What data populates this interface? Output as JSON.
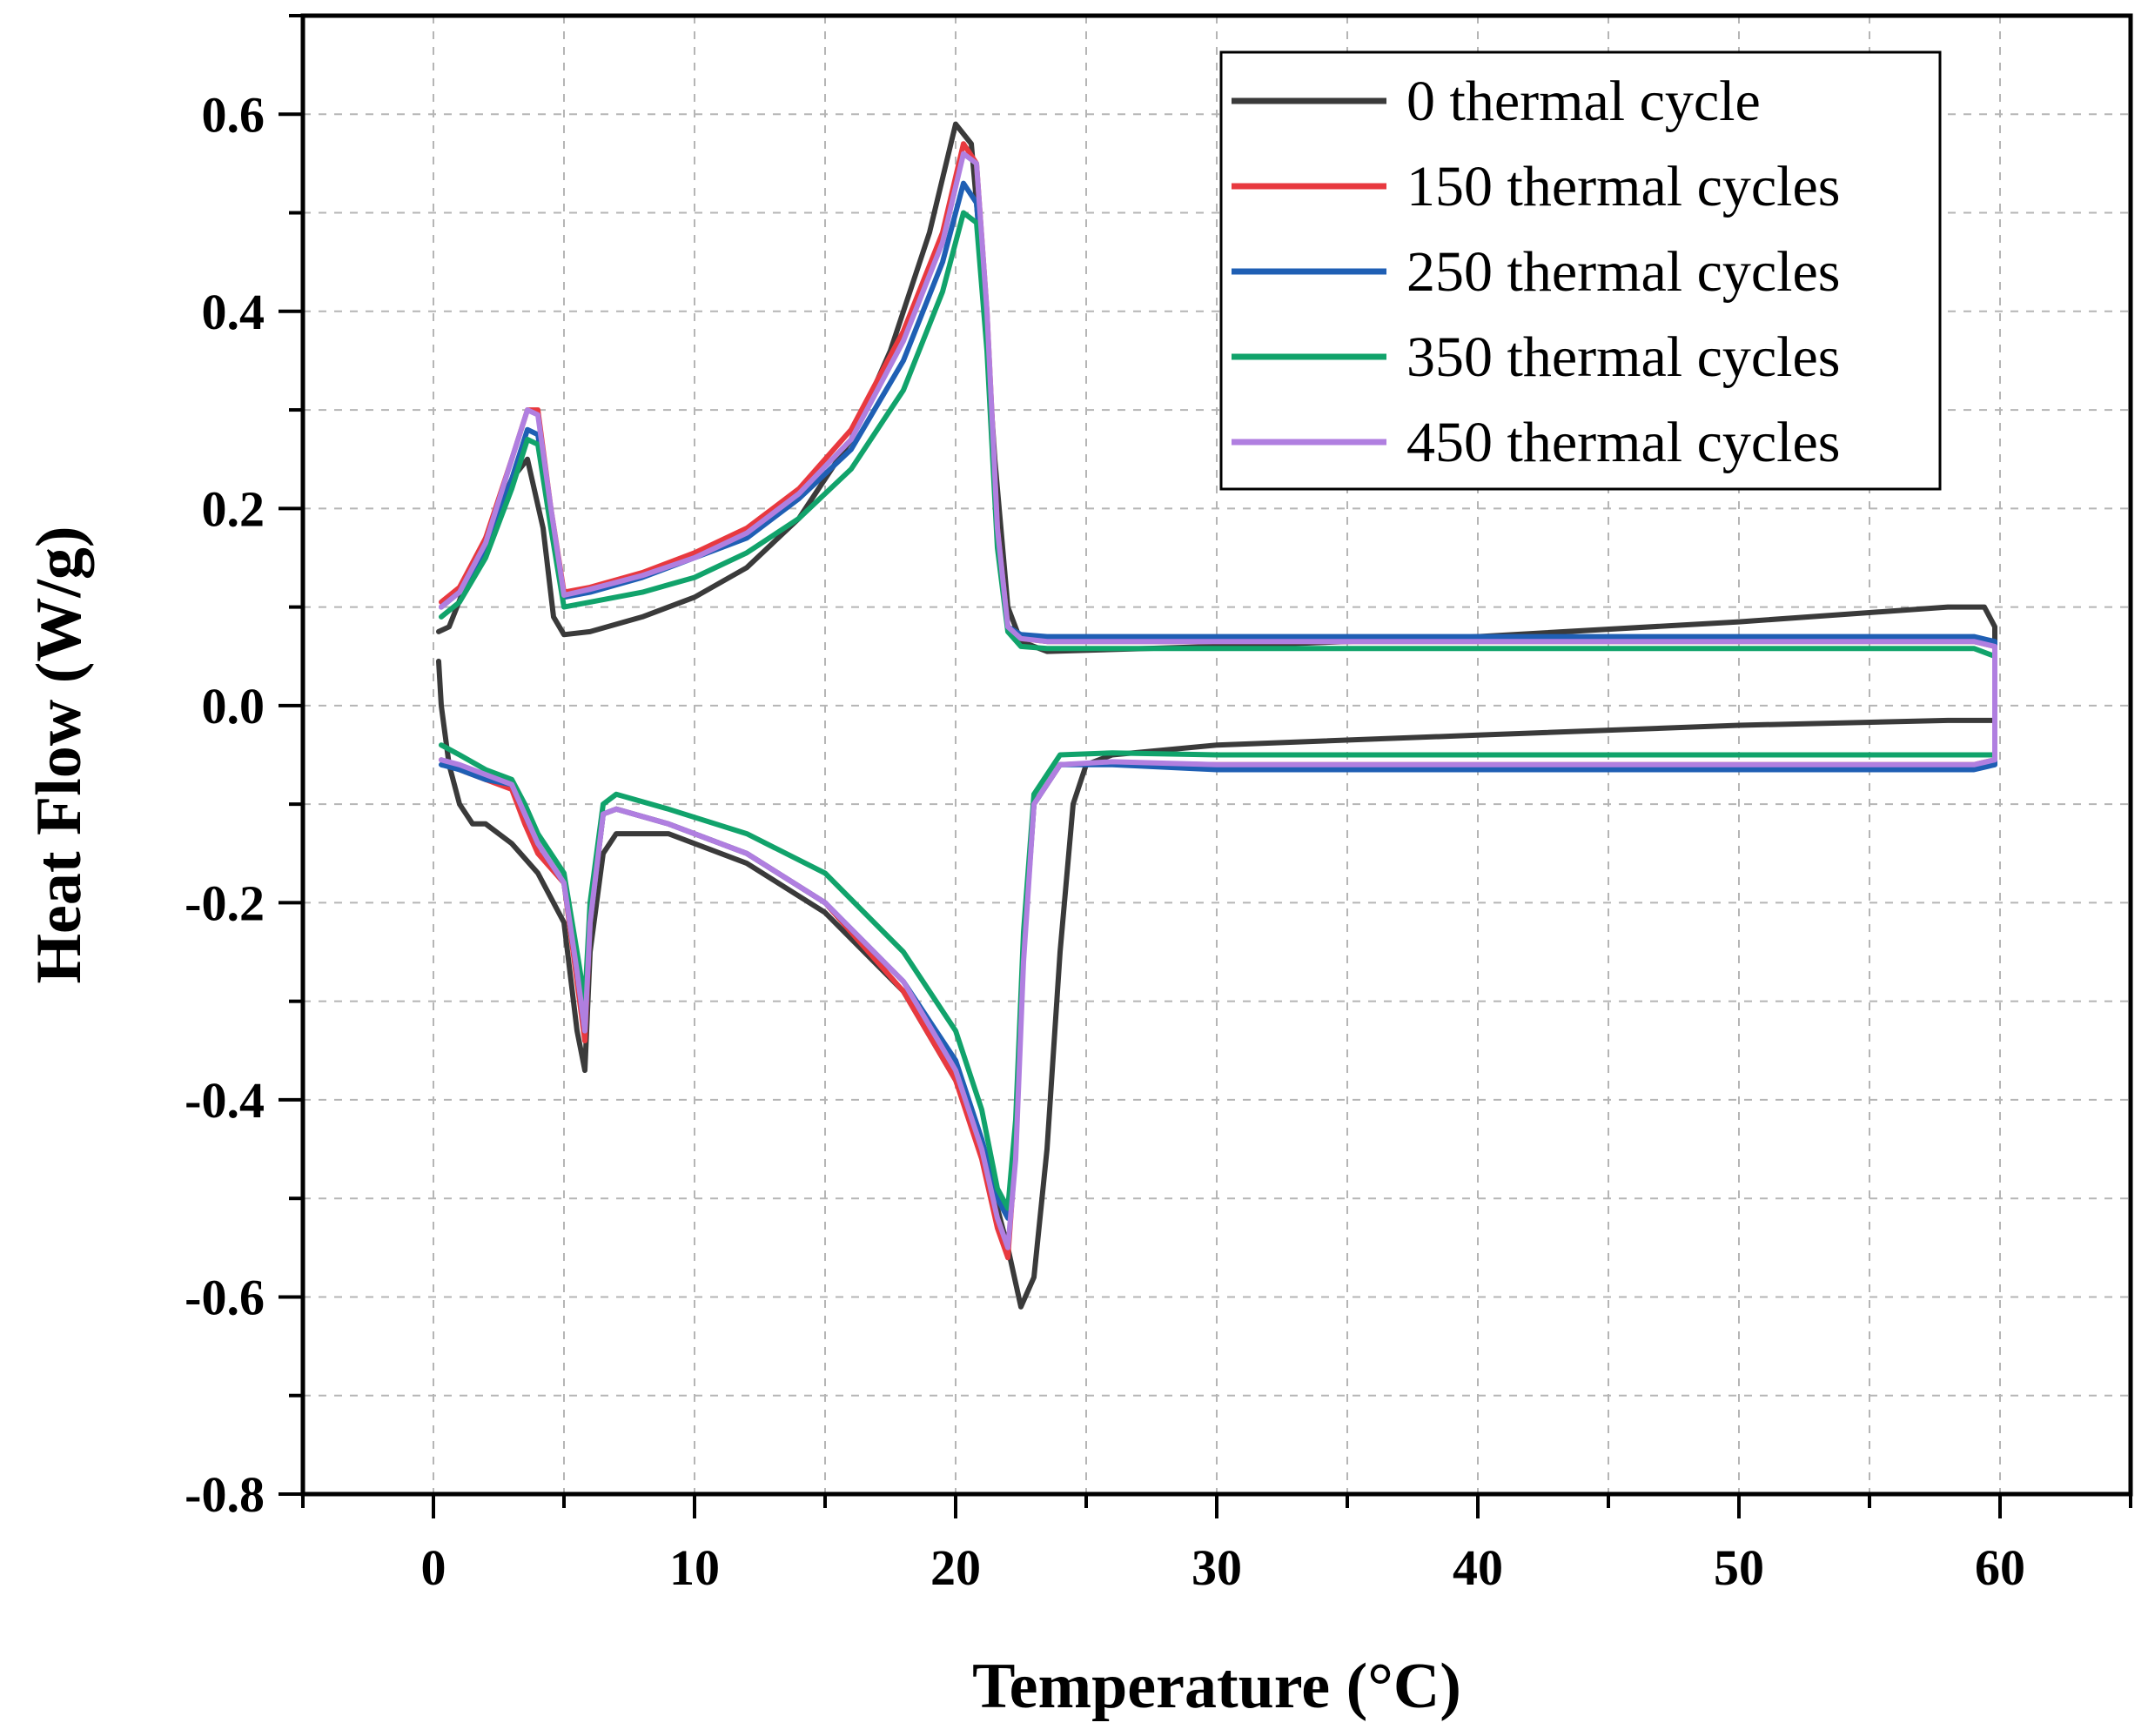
{
  "chart_data": {
    "type": "line",
    "title": "",
    "xlabel": "Temperature (°C)",
    "ylabel": "Heat Flow (W/g)",
    "xlim": [
      -5,
      65
    ],
    "ylim": [
      -0.8,
      0.7
    ],
    "xticks": [
      0,
      10,
      20,
      30,
      40,
      50,
      60
    ],
    "xtick_labels": [
      "0",
      "10",
      "20",
      "30",
      "40",
      "50",
      "60"
    ],
    "yticks": [
      -0.8,
      -0.6,
      -0.4,
      -0.2,
      0.0,
      0.2,
      0.4,
      0.6
    ],
    "ytick_labels": [
      "-0.8",
      "-0.6",
      "-0.4",
      "-0.2",
      "0.0",
      "0.2",
      "0.4",
      "0.6"
    ],
    "grid": true,
    "legend_position": "top-right",
    "series": [
      {
        "name": "0 thermal cycle",
        "color": "#3a3a3a",
        "x": [
          0.2,
          0.6,
          1.2,
          2.0,
          3.0,
          3.6,
          4.2,
          4.6,
          5.0,
          6.0,
          8.0,
          10.0,
          12.0,
          14.0,
          16.0,
          17.5,
          19.0,
          20.0,
          20.6,
          21.0,
          21.5,
          22.0,
          22.5,
          23.5,
          30.0,
          40.0,
          50.0,
          58.0,
          59.4,
          59.8,
          59.8,
          58.0,
          50.0,
          40.0,
          30.0,
          26.0,
          25.0,
          24.5,
          24.0,
          23.5,
          23.0,
          22.5,
          22.0,
          21.0,
          20.0,
          18.0,
          15.0,
          12.0,
          9.0,
          7.0,
          6.5,
          6.0,
          5.8,
          5.5,
          5.0,
          4.0,
          3.0,
          2.0,
          1.5,
          1.0,
          0.6,
          0.3,
          0.2
        ],
        "y": [
          0.075,
          0.08,
          0.12,
          0.17,
          0.23,
          0.25,
          0.18,
          0.09,
          0.072,
          0.075,
          0.09,
          0.11,
          0.14,
          0.19,
          0.27,
          0.36,
          0.48,
          0.59,
          0.57,
          0.45,
          0.25,
          0.1,
          0.065,
          0.055,
          0.06,
          0.07,
          0.085,
          0.1,
          0.1,
          0.08,
          -0.015,
          -0.015,
          -0.02,
          -0.03,
          -0.04,
          -0.05,
          -0.06,
          -0.1,
          -0.25,
          -0.45,
          -0.58,
          -0.61,
          -0.55,
          -0.45,
          -0.38,
          -0.29,
          -0.21,
          -0.16,
          -0.13,
          -0.13,
          -0.15,
          -0.25,
          -0.37,
          -0.33,
          -0.22,
          -0.17,
          -0.14,
          -0.12,
          -0.12,
          -0.1,
          -0.06,
          0.0,
          0.045
        ]
      },
      {
        "name": "150 thermal cycles",
        "color": "#e8393f",
        "x": [
          0.3,
          1.0,
          2.0,
          3.0,
          3.6,
          4.0,
          4.5,
          5.0,
          6.0,
          8.0,
          10.0,
          12.0,
          14.0,
          16.0,
          18.0,
          19.5,
          20.3,
          20.8,
          21.2,
          21.6,
          22.0,
          22.5,
          23.5,
          30.0,
          40.0,
          50.0,
          59.0,
          59.8,
          59.8,
          59.0,
          50.0,
          40.0,
          30.0,
          26.0,
          24.0,
          23.0,
          22.6,
          22.3,
          22.0,
          21.6,
          21.0,
          20.0,
          18.0,
          15.0,
          12.0,
          9.0,
          7.0,
          6.5,
          6.0,
          5.8,
          5.5,
          5.0,
          4.0,
          3.5,
          3.0,
          2.0,
          1.0,
          0.3
        ],
        "y": [
          0.105,
          0.12,
          0.17,
          0.25,
          0.3,
          0.3,
          0.2,
          0.115,
          0.12,
          0.135,
          0.155,
          0.18,
          0.22,
          0.28,
          0.38,
          0.48,
          0.57,
          0.55,
          0.4,
          0.18,
          0.08,
          0.068,
          0.065,
          0.065,
          0.065,
          0.065,
          0.065,
          0.06,
          -0.055,
          -0.06,
          -0.06,
          -0.06,
          -0.06,
          -0.058,
          -0.06,
          -0.1,
          -0.25,
          -0.45,
          -0.56,
          -0.53,
          -0.46,
          -0.38,
          -0.29,
          -0.2,
          -0.15,
          -0.12,
          -0.105,
          -0.11,
          -0.22,
          -0.34,
          -0.28,
          -0.18,
          -0.15,
          -0.12,
          -0.085,
          -0.075,
          -0.065,
          -0.055
        ]
      },
      {
        "name": "250 thermal cycles",
        "color": "#1f5fb4",
        "x": [
          0.3,
          1.0,
          2.0,
          3.0,
          3.6,
          4.0,
          4.5,
          5.0,
          6.0,
          8.0,
          10.0,
          12.0,
          14.0,
          16.0,
          18.0,
          19.5,
          20.3,
          20.8,
          21.2,
          21.6,
          22.0,
          22.5,
          23.5,
          30.0,
          40.0,
          50.0,
          59.0,
          59.8,
          59.8,
          59.0,
          50.0,
          40.0,
          30.0,
          26.0,
          24.0,
          23.0,
          22.6,
          22.3,
          22.0,
          21.6,
          21.0,
          20.0,
          18.0,
          15.0,
          12.0,
          9.0,
          7.0,
          6.5,
          6.0,
          5.8,
          5.5,
          5.0,
          4.0,
          3.5,
          3.0,
          2.0,
          1.0,
          0.3
        ],
        "y": [
          0.1,
          0.115,
          0.16,
          0.23,
          0.28,
          0.275,
          0.19,
          0.11,
          0.115,
          0.13,
          0.15,
          0.17,
          0.21,
          0.26,
          0.35,
          0.45,
          0.53,
          0.51,
          0.38,
          0.17,
          0.08,
          0.072,
          0.07,
          0.07,
          0.07,
          0.07,
          0.07,
          0.065,
          -0.06,
          -0.065,
          -0.065,
          -0.065,
          -0.065,
          -0.06,
          -0.06,
          -0.1,
          -0.25,
          -0.43,
          -0.52,
          -0.5,
          -0.44,
          -0.36,
          -0.28,
          -0.2,
          -0.15,
          -0.12,
          -0.105,
          -0.11,
          -0.22,
          -0.33,
          -0.27,
          -0.18,
          -0.14,
          -0.11,
          -0.08,
          -0.075,
          -0.065,
          -0.06
        ]
      },
      {
        "name": "350 thermal cycles",
        "color": "#11a36b",
        "x": [
          0.3,
          1.0,
          2.0,
          3.0,
          3.6,
          4.0,
          4.5,
          5.0,
          6.0,
          8.0,
          10.0,
          12.0,
          14.0,
          16.0,
          18.0,
          19.5,
          20.3,
          20.8,
          21.2,
          21.6,
          22.0,
          22.5,
          23.5,
          30.0,
          40.0,
          50.0,
          59.0,
          59.8,
          59.8,
          59.0,
          50.0,
          40.0,
          30.0,
          26.0,
          24.0,
          23.0,
          22.6,
          22.3,
          22.0,
          21.6,
          21.0,
          20.0,
          18.0,
          15.0,
          12.0,
          9.0,
          7.0,
          6.5,
          6.0,
          5.8,
          5.5,
          5.0,
          4.0,
          3.5,
          3.0,
          2.0,
          1.0,
          0.3
        ],
        "y": [
          0.09,
          0.105,
          0.15,
          0.22,
          0.27,
          0.265,
          0.18,
          0.1,
          0.105,
          0.115,
          0.13,
          0.155,
          0.19,
          0.24,
          0.32,
          0.42,
          0.5,
          0.49,
          0.36,
          0.16,
          0.075,
          0.06,
          0.058,
          0.058,
          0.058,
          0.058,
          0.058,
          0.05,
          -0.05,
          -0.05,
          -0.05,
          -0.05,
          -0.05,
          -0.048,
          -0.05,
          -0.09,
          -0.23,
          -0.42,
          -0.51,
          -0.49,
          -0.41,
          -0.33,
          -0.25,
          -0.17,
          -0.13,
          -0.105,
          -0.09,
          -0.1,
          -0.2,
          -0.3,
          -0.25,
          -0.17,
          -0.13,
          -0.1,
          -0.075,
          -0.065,
          -0.05,
          -0.04
        ]
      },
      {
        "name": "450 thermal cycles",
        "color": "#b07fe0",
        "x": [
          0.3,
          1.0,
          2.0,
          3.0,
          3.6,
          4.0,
          4.5,
          5.0,
          6.0,
          8.0,
          10.0,
          12.0,
          14.0,
          16.0,
          18.0,
          19.5,
          20.3,
          20.8,
          21.2,
          21.6,
          22.0,
          22.5,
          23.5,
          30.0,
          40.0,
          50.0,
          59.0,
          59.8,
          59.8,
          59.0,
          50.0,
          40.0,
          30.0,
          26.0,
          24.0,
          23.0,
          22.6,
          22.3,
          22.0,
          21.6,
          21.0,
          20.0,
          18.0,
          15.0,
          12.0,
          9.0,
          7.0,
          6.5,
          6.0,
          5.8,
          5.5,
          5.0,
          4.0,
          3.5,
          3.0,
          2.0,
          1.0,
          0.3
        ],
        "y": [
          0.1,
          0.115,
          0.165,
          0.25,
          0.3,
          0.295,
          0.2,
          0.112,
          0.118,
          0.132,
          0.15,
          0.175,
          0.215,
          0.27,
          0.37,
          0.47,
          0.56,
          0.55,
          0.4,
          0.18,
          0.08,
          0.068,
          0.065,
          0.065,
          0.065,
          0.065,
          0.065,
          0.06,
          -0.055,
          -0.06,
          -0.06,
          -0.06,
          -0.06,
          -0.057,
          -0.06,
          -0.1,
          -0.26,
          -0.46,
          -0.55,
          -0.52,
          -0.45,
          -0.37,
          -0.28,
          -0.2,
          -0.15,
          -0.12,
          -0.105,
          -0.11,
          -0.22,
          -0.33,
          -0.27,
          -0.18,
          -0.14,
          -0.11,
          -0.08,
          -0.07,
          -0.06,
          -0.055
        ]
      }
    ]
  }
}
